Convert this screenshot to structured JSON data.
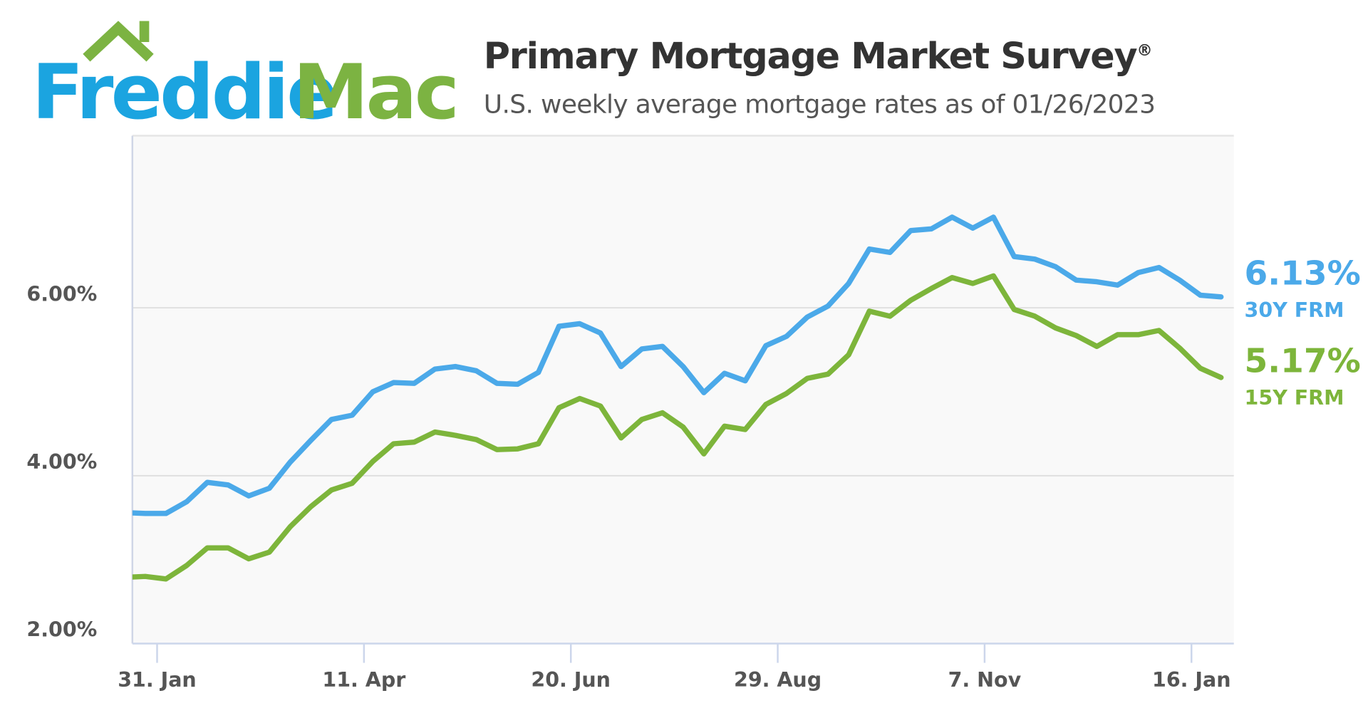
{
  "logo": {
    "word1": "Freddie",
    "word2": "Mac",
    "colors": {
      "blue": "#1ba4e0",
      "green": "#7cb342"
    }
  },
  "header": {
    "title": "Primary Mortgage Market Survey",
    "title_mark": "®",
    "subtitle": "U.S. weekly average mortgage rates as of 01/26/2023"
  },
  "chart_data": {
    "type": "line",
    "title": "Primary Mortgage Market Survey®",
    "subtitle": "U.S. weekly average mortgage rates as of 01/26/2023",
    "xlabel": "",
    "ylabel": "",
    "ylim": [
      2,
      8.05
    ],
    "yticks": [
      2,
      4,
      6
    ],
    "ytick_labels": [
      "2.00%",
      "4.00%",
      "6.00%"
    ],
    "xticks": [
      "2022-01-31",
      "2022-04-11",
      "2022-06-20",
      "2022-08-29",
      "2022-11-07",
      "2023-01-16"
    ],
    "xtick_labels": [
      "31. Jan",
      "11. Apr",
      "20. Jun",
      "29. Aug",
      "7. Nov",
      "16. Jan"
    ],
    "grid": "horizontal",
    "legend": "end-labels-right",
    "x_start": "2022-01-20",
    "x_step_days": 7,
    "series": [
      {
        "name": "30Y FRM",
        "last_label": "6.13%",
        "color": "#4ba9e9",
        "values": [
          3.56,
          3.55,
          3.55,
          3.69,
          3.92,
          3.89,
          3.76,
          3.85,
          4.16,
          4.42,
          4.67,
          4.72,
          5.0,
          5.11,
          5.1,
          5.27,
          5.3,
          5.25,
          5.1,
          5.09,
          5.23,
          5.78,
          5.81,
          5.7,
          5.3,
          5.51,
          5.54,
          5.3,
          4.99,
          5.22,
          5.13,
          5.55,
          5.66,
          5.89,
          6.02,
          6.29,
          6.7,
          6.66,
          6.92,
          6.94,
          7.08,
          6.95,
          7.08,
          6.61,
          6.58,
          6.49,
          6.33,
          6.31,
          6.27,
          6.42,
          6.48,
          6.33,
          6.15,
          6.13
        ]
      },
      {
        "name": "15Y FRM",
        "last_label": "5.17%",
        "color": "#7db53b",
        "values": [
          2.79,
          2.8,
          2.77,
          2.93,
          3.14,
          3.14,
          3.01,
          3.09,
          3.39,
          3.63,
          3.83,
          3.91,
          4.17,
          4.38,
          4.4,
          4.52,
          4.48,
          4.43,
          4.31,
          4.32,
          4.38,
          4.81,
          4.92,
          4.83,
          4.45,
          4.67,
          4.75,
          4.58,
          4.26,
          4.59,
          4.55,
          4.85,
          4.98,
          5.16,
          5.21,
          5.44,
          5.96,
          5.9,
          6.09,
          6.23,
          6.36,
          6.29,
          6.38,
          5.98,
          5.9,
          5.76,
          5.67,
          5.54,
          5.68,
          5.68,
          5.73,
          5.52,
          5.28,
          5.17
        ]
      }
    ]
  }
}
